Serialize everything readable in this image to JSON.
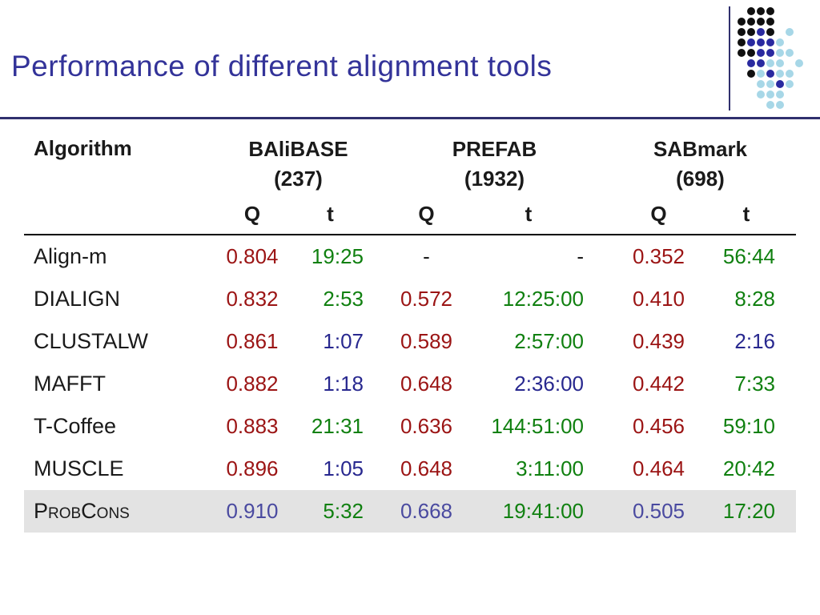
{
  "slide": {
    "title": "Performance of different alignment tools"
  },
  "colors": {
    "title": "#333399",
    "rule": "#30306e",
    "red": "#9b1414",
    "green": "#108010",
    "blue": "#28288f",
    "purple": "#4a4aa0",
    "highlight_bg": "#e3e3e3"
  },
  "table": {
    "header": {
      "algorithm": "Algorithm",
      "groups": [
        {
          "name": "BAliBASE",
          "count": "(237)"
        },
        {
          "name": "PREFAB",
          "count": "(1932)"
        },
        {
          "name": "SABmark",
          "count": "(698)"
        }
      ],
      "subheaders": [
        "Q",
        "t"
      ]
    },
    "rows": [
      {
        "cells": [
          "Align-m",
          "0.804",
          "19:25",
          "-",
          "-",
          "0.352",
          "56:44"
        ],
        "colors": [
          "black",
          "red",
          "green",
          "black",
          "black",
          "red",
          "green"
        ]
      },
      {
        "cells": [
          "DIALIGN",
          "0.832",
          "2:53",
          "0.572",
          "12:25:00",
          "0.410",
          "8:28"
        ],
        "colors": [
          "black",
          "red",
          "green",
          "red",
          "green",
          "red",
          "green"
        ]
      },
      {
        "cells": [
          "CLUSTALW",
          "0.861",
          "1:07",
          "0.589",
          "2:57:00",
          "0.439",
          "2:16"
        ],
        "colors": [
          "black",
          "red",
          "blue",
          "red",
          "green",
          "red",
          "blue"
        ]
      },
      {
        "cells": [
          "MAFFT",
          "0.882",
          "1:18",
          "0.648",
          "2:36:00",
          "0.442",
          "7:33"
        ],
        "colors": [
          "black",
          "red",
          "blue",
          "red",
          "blue",
          "red",
          "green"
        ]
      },
      {
        "cells": [
          "T-Coffee",
          "0.883",
          "21:31",
          "0.636",
          "144:51:00",
          "0.456",
          "59:10"
        ],
        "colors": [
          "black",
          "red",
          "green",
          "red",
          "green",
          "red",
          "green"
        ]
      },
      {
        "cells": [
          "MUSCLE",
          "0.896",
          "1:05",
          "0.648",
          "3:11:00",
          "0.464",
          "20:42"
        ],
        "colors": [
          "black",
          "red",
          "blue",
          "red",
          "green",
          "red",
          "green"
        ]
      },
      {
        "cells": [
          "ProbCons",
          "0.910",
          "5:32",
          "0.668",
          "19:41:00",
          "0.505",
          "17:20"
        ],
        "colors": [
          "black",
          "purple",
          "green",
          "purple",
          "green",
          "purple",
          "green"
        ],
        "highlight": true
      }
    ]
  },
  "logo": {
    "palette": {
      "k": "#101010",
      "b": "#2a2aa0",
      "c": "#a7d7e7"
    },
    "rows": [
      ".kkk...",
      "kkkk...",
      "kkbk.c.",
      "kbbbc..",
      "kkbbcc.",
      ".bbcc.c",
      ".kcbcc.",
      "..ccbc.",
      "..ccc..",
      "...cc.."
    ]
  }
}
